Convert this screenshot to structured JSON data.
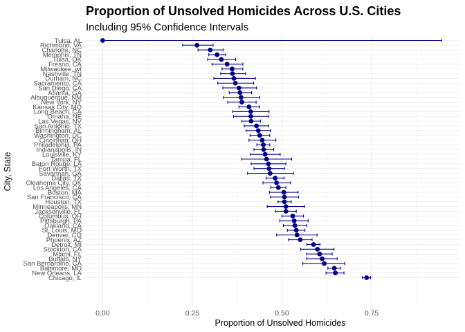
{
  "chart_data": {
    "type": "scatter",
    "title": "Proportion of Unsolved Homicides Across U.S. Cities",
    "subtitle": "Including 95% Confidence Intervals",
    "xlabel": "Proportion of Unsolved Homicides",
    "ylabel": "City, State",
    "xlim": [
      -0.047,
      0.995
    ],
    "x_ticks": [
      0.0,
      0.25,
      0.5,
      0.75
    ],
    "x_tick_labels": [
      "0.00",
      "0.25",
      "0.50",
      "0.75"
    ],
    "grid": true,
    "point_color": "#00008B",
    "errorbar_color": "#00008B",
    "points": [
      {
        "city": "Tulsa, AL",
        "estimate": 0.0,
        "lower": 0.0,
        "upper": 0.945
      },
      {
        "city": "Richmond, VA",
        "estimate": 0.263,
        "lower": 0.223,
        "upper": 0.308
      },
      {
        "city": "Charlotte, NC",
        "estimate": 0.3,
        "lower": 0.266,
        "upper": 0.336
      },
      {
        "city": "Memphis, TN",
        "estimate": 0.319,
        "lower": 0.296,
        "upper": 0.343
      },
      {
        "city": "Tulsa, OK",
        "estimate": 0.331,
        "lower": 0.293,
        "upper": 0.371
      },
      {
        "city": "Fresno, CA",
        "estimate": 0.347,
        "lower": 0.305,
        "upper": 0.391
      },
      {
        "city": "Milwaukee, wI",
        "estimate": 0.361,
        "lower": 0.333,
        "upper": 0.391
      },
      {
        "city": "Nashville, TN",
        "estimate": 0.362,
        "lower": 0.329,
        "upper": 0.398
      },
      {
        "city": "Durham, NC",
        "estimate": 0.366,
        "lower": 0.31,
        "upper": 0.426
      },
      {
        "city": "Sacramento, CA",
        "estimate": 0.37,
        "lower": 0.321,
        "upper": 0.421
      },
      {
        "city": "San Diego, CA",
        "estimate": 0.38,
        "lower": 0.335,
        "upper": 0.429
      },
      {
        "city": "Atlanta, GA",
        "estimate": 0.383,
        "lower": 0.353,
        "upper": 0.415
      },
      {
        "city": "Albuquerque, NM",
        "estimate": 0.386,
        "lower": 0.337,
        "upper": 0.438
      },
      {
        "city": "New York, NY",
        "estimate": 0.388,
        "lower": 0.349,
        "upper": 0.428
      },
      {
        "city": "Kansas City, MO",
        "estimate": 0.408,
        "lower": 0.38,
        "upper": 0.437
      },
      {
        "city": "Long Beach, CA",
        "estimate": 0.413,
        "lower": 0.363,
        "upper": 0.464
      },
      {
        "city": "Omaha, NE",
        "estimate": 0.413,
        "lower": 0.365,
        "upper": 0.463
      },
      {
        "city": "Las Vegas, NV",
        "estimate": 0.414,
        "lower": 0.388,
        "upper": 0.44
      },
      {
        "city": "San Antonio, TX",
        "estimate": 0.429,
        "lower": 0.395,
        "upper": 0.463
      },
      {
        "city": "Birmingham, AL",
        "estimate": 0.434,
        "lower": 0.4,
        "upper": 0.468
      },
      {
        "city": "Washington, DC",
        "estimate": 0.438,
        "lower": 0.411,
        "upper": 0.466
      },
      {
        "city": "Cincinnati, OH",
        "estimate": 0.445,
        "lower": 0.408,
        "upper": 0.483
      },
      {
        "city": "Philadelphia, PA",
        "estimate": 0.448,
        "lower": 0.43,
        "upper": 0.466
      },
      {
        "city": "Indianapolis, IN",
        "estimate": 0.449,
        "lower": 0.422,
        "upper": 0.477
      },
      {
        "city": "Louisville, KY",
        "estimate": 0.453,
        "lower": 0.412,
        "upper": 0.495
      },
      {
        "city": "Tampa, FL",
        "estimate": 0.457,
        "lower": 0.388,
        "upper": 0.527
      },
      {
        "city": "Baton Rouge, LA",
        "estimate": 0.462,
        "lower": 0.414,
        "upper": 0.511
      },
      {
        "city": "Fort Worth, TX",
        "estimate": 0.464,
        "lower": 0.422,
        "upper": 0.507
      },
      {
        "city": "Savannah, GA",
        "estimate": 0.467,
        "lower": 0.404,
        "upper": 0.532
      },
      {
        "city": "Dallas, TX",
        "estimate": 0.481,
        "lower": 0.456,
        "upper": 0.506
      },
      {
        "city": "Oklahoma City, OK",
        "estimate": 0.485,
        "lower": 0.447,
        "upper": 0.524
      },
      {
        "city": "Los Angeles, CA",
        "estimate": 0.49,
        "lower": 0.469,
        "upper": 0.511
      },
      {
        "city": "Boston, MA",
        "estimate": 0.505,
        "lower": 0.465,
        "upper": 0.545
      },
      {
        "city": "San Francisco, CA",
        "estimate": 0.507,
        "lower": 0.468,
        "upper": 0.546
      },
      {
        "city": "Houston, TX",
        "estimate": 0.507,
        "lower": 0.489,
        "upper": 0.526
      },
      {
        "city": "Minneapolis, MN",
        "estimate": 0.511,
        "lower": 0.459,
        "upper": 0.563
      },
      {
        "city": "Jacksonville, FL",
        "estimate": 0.511,
        "lower": 0.482,
        "upper": 0.54
      },
      {
        "city": "Columbus, OH",
        "estimate": 0.53,
        "lower": 0.5,
        "upper": 0.56
      },
      {
        "city": "Pittsburgh, PA",
        "estimate": 0.534,
        "lower": 0.494,
        "upper": 0.573
      },
      {
        "city": "Oakland, CA",
        "estimate": 0.536,
        "lower": 0.504,
        "upper": 0.569
      },
      {
        "city": "St. Louis, MO",
        "estimate": 0.54,
        "lower": 0.515,
        "upper": 0.564
      },
      {
        "city": "Denver, CO",
        "estimate": 0.542,
        "lower": 0.485,
        "upper": 0.598
      },
      {
        "city": "Phoenix, AZ",
        "estimate": 0.551,
        "lower": 0.518,
        "upper": 0.584
      },
      {
        "city": "Detroit, MI",
        "estimate": 0.588,
        "lower": 0.569,
        "upper": 0.606
      },
      {
        "city": "Stockton, CA",
        "estimate": 0.599,
        "lower": 0.552,
        "upper": 0.645
      },
      {
        "city": "Miami, FL",
        "estimate": 0.605,
        "lower": 0.569,
        "upper": 0.64
      },
      {
        "city": "Buffalo, NY",
        "estimate": 0.612,
        "lower": 0.569,
        "upper": 0.654
      },
      {
        "city": "San Bernardino, CA",
        "estimate": 0.618,
        "lower": 0.558,
        "upper": 0.675
      },
      {
        "city": "Baltimore, MD",
        "estimate": 0.646,
        "lower": 0.628,
        "upper": 0.663
      },
      {
        "city": "New Orleans, LA",
        "estimate": 0.649,
        "lower": 0.623,
        "upper": 0.673
      },
      {
        "city": "Chicago, IL",
        "estimate": 0.736,
        "lower": 0.724,
        "upper": 0.747
      }
    ]
  }
}
